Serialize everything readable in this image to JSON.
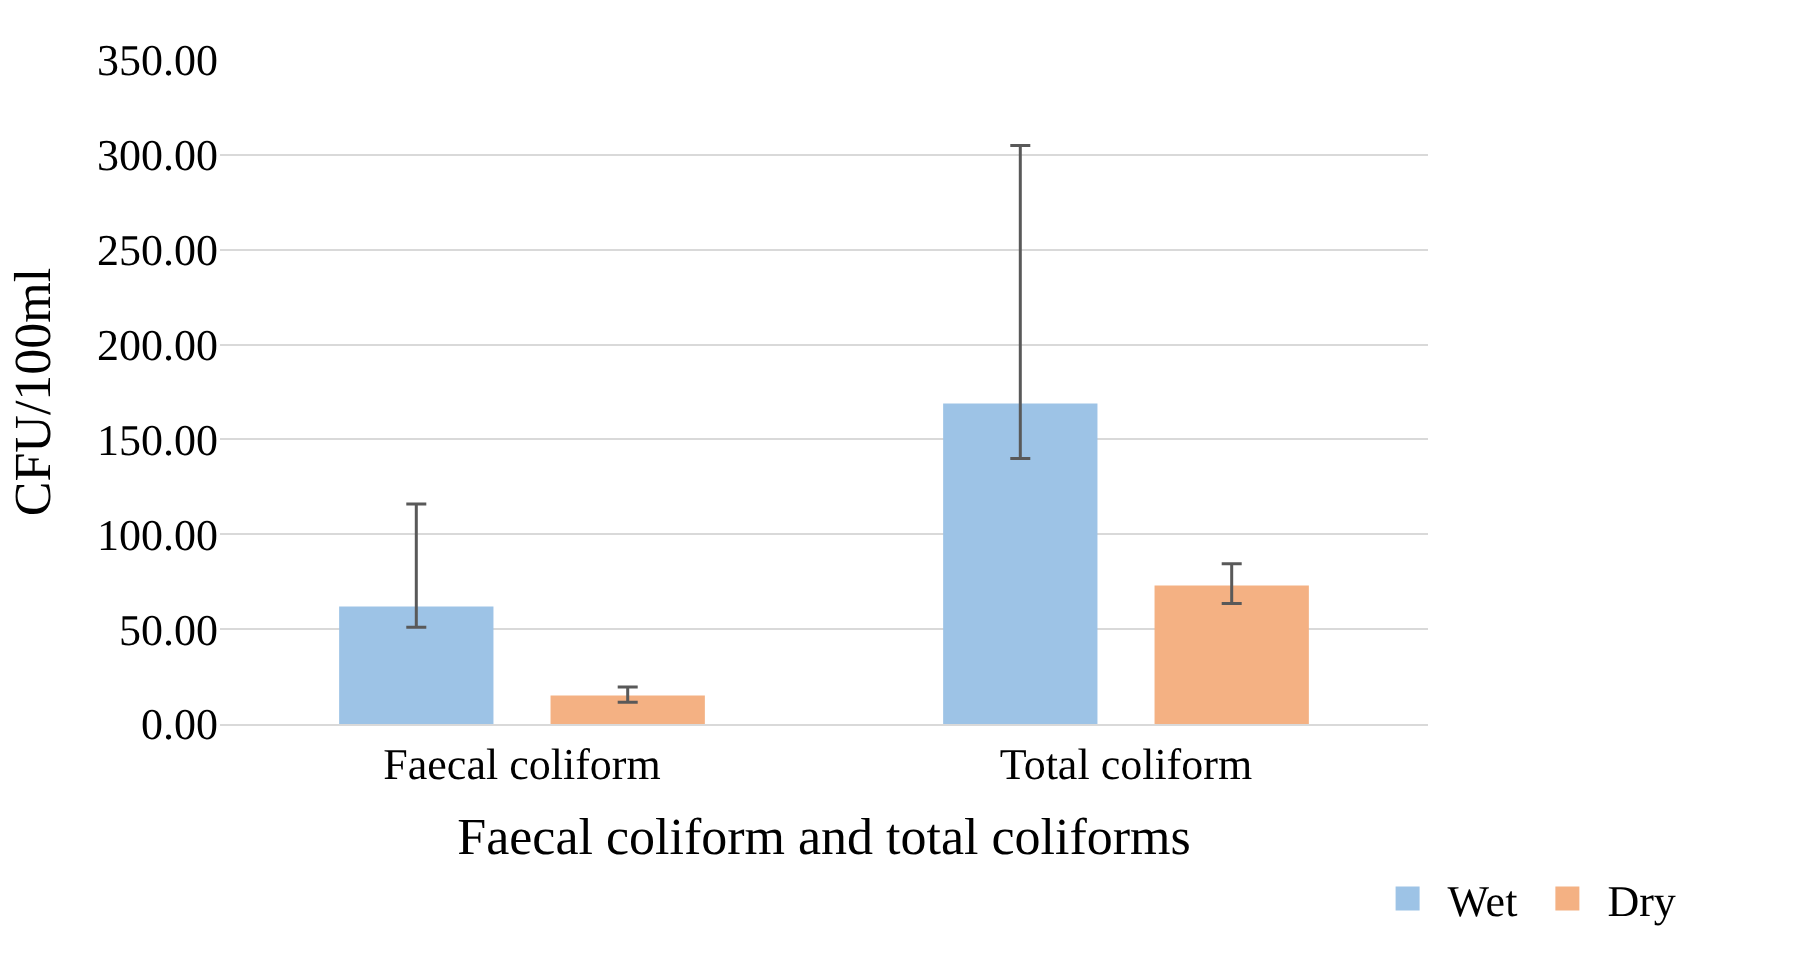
{
  "chart_data": {
    "type": "bar",
    "ylabel": "CFU/100ml",
    "xlabel": "Faecal coliform and total coliforms",
    "categories": [
      "Faecal coliform",
      "Total coliform"
    ],
    "series": [
      {
        "name": "Wet",
        "color": "#9dc3e6",
        "values": [
          62,
          169
        ],
        "errors": [
          [
            51,
            116
          ],
          [
            140,
            305
          ]
        ]
      },
      {
        "name": "Dry",
        "color": "#f4b183",
        "values": [
          15,
          73
        ],
        "errors": [
          [
            11.5,
            19.5
          ],
          [
            63.5,
            84.5
          ]
        ]
      }
    ],
    "ylim": [
      0,
      350
    ],
    "yticks": [
      {
        "value": 0,
        "label": "0.00"
      },
      {
        "value": 50,
        "label": "50.00"
      },
      {
        "value": 100,
        "label": "100.00"
      },
      {
        "value": 150,
        "label": "150.00"
      },
      {
        "value": 200,
        "label": "200.00"
      },
      {
        "value": 250,
        "label": "250.00"
      },
      {
        "value": 300,
        "label": "300.00"
      },
      {
        "value": 350,
        "label": "350.00"
      }
    ],
    "grid": "y",
    "legend": "bottom"
  }
}
